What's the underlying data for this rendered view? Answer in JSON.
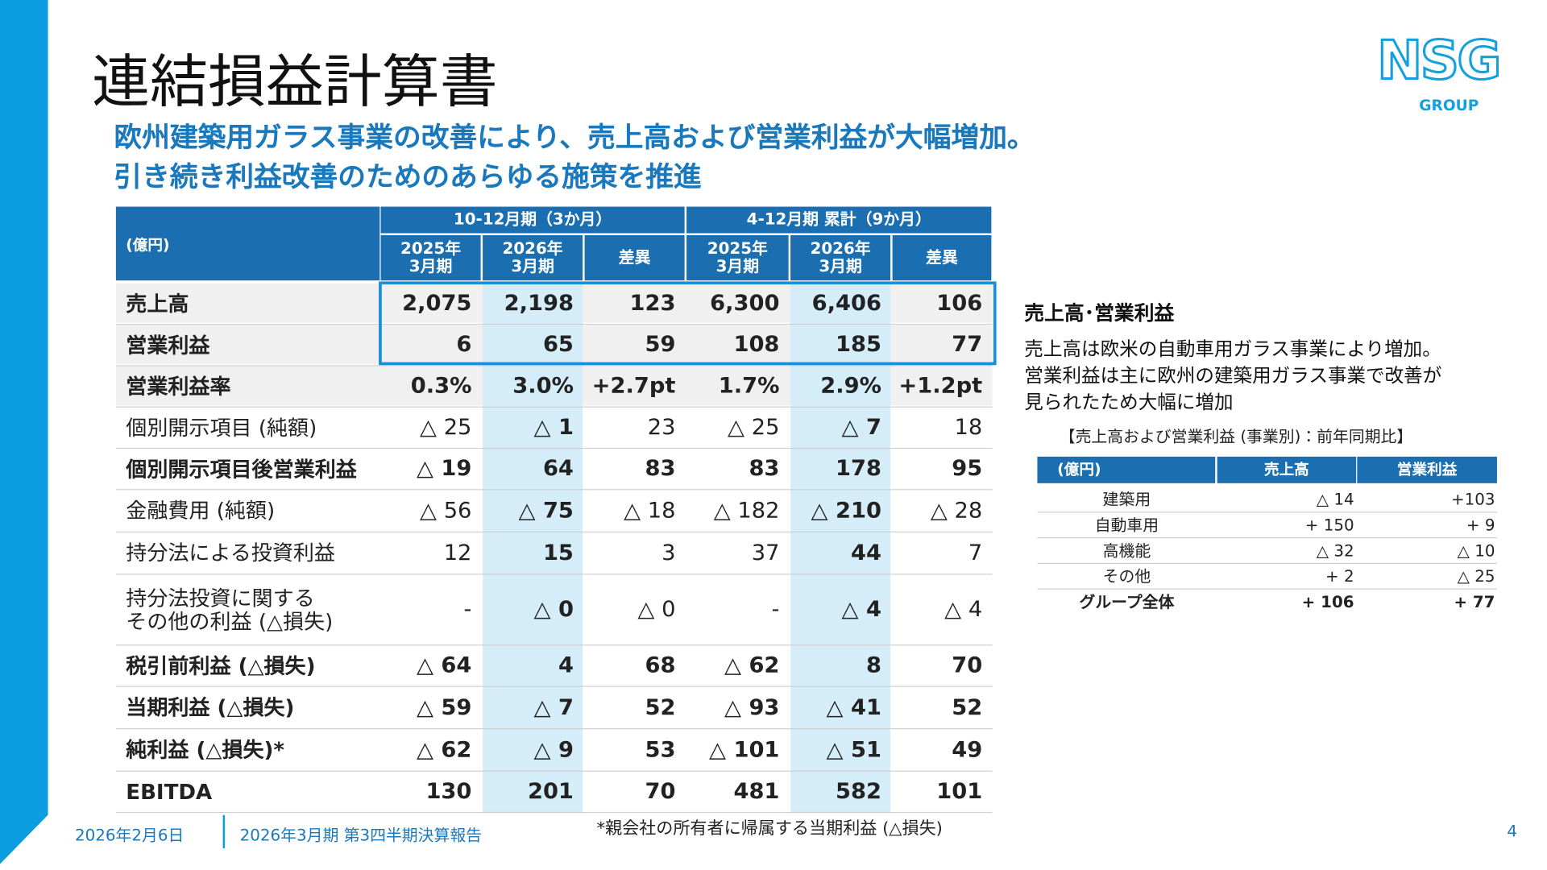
{
  "header": {
    "title": "連結損益計算書",
    "logo": "NSG",
    "logo_sub": "GROUP",
    "subtitle": [
      "欧州建築用ガラス事業の改善により、売上高および営業利益が大幅増加。",
      "引き続き利益改善のためのあらゆる施策を推進"
    ]
  },
  "table": {
    "unit": "(億円)",
    "groups": [
      "10-12月期（3か月）",
      "4-12月期 累計（9か月）"
    ],
    "columns": [
      "2025年\n3月期",
      "2026年\n3月期",
      "差異",
      "2025年\n3月期",
      "2026年\n3月期",
      "差異"
    ],
    "rows": [
      [
        "売上高",
        "2,075",
        "2,198",
        "123",
        "6,300",
        "6,406",
        "106"
      ],
      [
        "営業利益",
        "6",
        "65",
        "59",
        "108",
        "185",
        "77"
      ],
      [
        "営業利益率",
        "0.3%",
        "3.0%",
        "+2.7pt",
        "1.7%",
        "2.9%",
        "+1.2pt"
      ],
      [
        "個別開示項目 (純額)",
        "△ 25",
        "△ 1",
        "23",
        "△ 25",
        "△ 7",
        "18"
      ],
      [
        "個別開示項目後営業利益",
        "△ 19",
        "64",
        "83",
        "83",
        "178",
        "95"
      ],
      [
        "金融費用 (純額)",
        "△ 56",
        "△ 75",
        "△ 18",
        "△ 182",
        "△ 210",
        "△ 28"
      ],
      [
        "持分法による投資利益",
        "12",
        "15",
        "3",
        "37",
        "44",
        "7"
      ],
      [
        "持分法投資に関する\nその他の利益 (△損失)",
        "-",
        "△ 0",
        "△ 0",
        "-",
        "△ 4",
        "△ 4"
      ],
      [
        "税引前利益 (△損失)",
        "△ 64",
        "4",
        "68",
        "△ 62",
        "8",
        "70"
      ],
      [
        "当期利益 (△損失)",
        "△ 59",
        "△ 7",
        "52",
        "△ 93",
        "△ 41",
        "52"
      ],
      [
        "純利益 (△損失)*",
        "△ 62",
        "△ 9",
        "53",
        "△ 101",
        "△ 51",
        "49"
      ],
      [
        "EBITDA",
        "130",
        "201",
        "70",
        "481",
        "582",
        "101"
      ]
    ]
  },
  "side": {
    "title": "売上高･営業利益",
    "text": [
      "売上高は欧米の自動車用ガラス事業により増加。",
      "営業利益は主に欧州の建築用ガラス事業で改善が",
      "見られたため大幅に増加"
    ],
    "note": "【売上高および営業利益 (事業別)：前年同期比】",
    "table": {
      "header": [
        "(億円)",
        "売上高",
        "営業利益"
      ],
      "rows": [
        [
          "建築用",
          "△ 14",
          "+103"
        ],
        [
          "自動車用",
          "+ 150",
          "+ 9"
        ],
        [
          "高機能",
          "△ 32",
          "△ 10"
        ],
        [
          "その他",
          "+ 2",
          "△ 25"
        ],
        [
          "グループ全体",
          "+ 106",
          "+ 77"
        ]
      ]
    }
  },
  "footer": {
    "date": "2026年2月6日",
    "report": "2026年3月期 第3四半期決算報告",
    "note": "*親会社の所有者に帰属する当期利益 (△損失)",
    "page": "4"
  }
}
